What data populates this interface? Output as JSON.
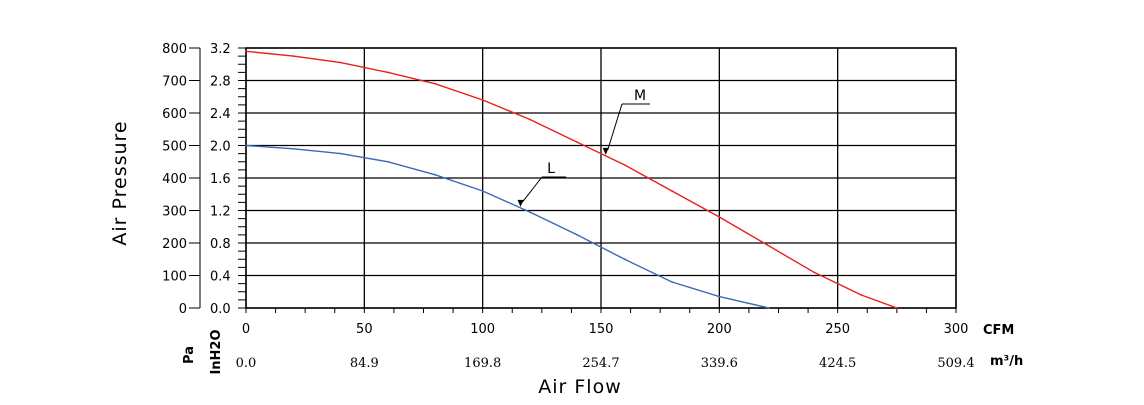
{
  "chart_data": {
    "type": "line",
    "title": "",
    "xlabel": "Air Flow",
    "ylabel": "Air Pressure",
    "x_unit_primary": "CFM",
    "x_unit_secondary": "m³/h",
    "y_unit_primary_label": "Pa",
    "y_unit_secondary_label": "InH2O",
    "x_ticks_cfm": [
      "0",
      "50",
      "100",
      "150",
      "200",
      "250",
      "300"
    ],
    "x_ticks_m3h": [
      "0.0",
      "84.9",
      "169.8",
      "254.7",
      "339.6",
      "424.5",
      "509.4"
    ],
    "y_ticks_pa": [
      "0",
      "100",
      "200",
      "300",
      "400",
      "500",
      "600",
      "700",
      "800"
    ],
    "y_ticks_inh2o": [
      "0.0",
      "0.4",
      "0.8",
      "1.2",
      "1.6",
      "2.0",
      "2.4",
      "2.8",
      "3.2"
    ],
    "xlim": [
      0,
      300
    ],
    "ylim": [
      0,
      800
    ],
    "grid": true,
    "series": [
      {
        "name": "M",
        "color": "#e8201e",
        "x": [
          0,
          20,
          40,
          60,
          80,
          100,
          120,
          140,
          160,
          180,
          200,
          220,
          240,
          260,
          275
        ],
        "y": [
          790,
          775,
          755,
          725,
          690,
          640,
          580,
          510,
          440,
          360,
          280,
          195,
          110,
          40,
          0
        ]
      },
      {
        "name": "L",
        "color": "#3a6ab4",
        "x": [
          0,
          20,
          40,
          60,
          80,
          100,
          120,
          140,
          160,
          180,
          200,
          221
        ],
        "y": [
          500,
          490,
          475,
          450,
          410,
          360,
          295,
          225,
          150,
          80,
          35,
          0
        ]
      }
    ],
    "annotations": [
      {
        "text": "M",
        "series": "M"
      },
      {
        "text": "L",
        "series": "L"
      }
    ]
  }
}
